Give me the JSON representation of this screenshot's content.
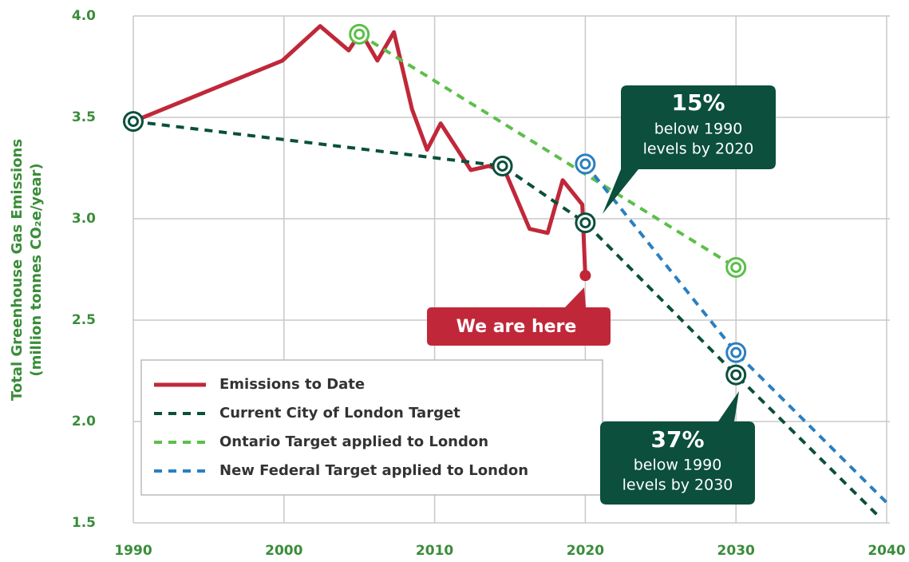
{
  "chart_data": {
    "type": "line",
    "y_label": [
      "Total Greenhouse Gas Emissions",
      "(million tonnes CO₂e/year)"
    ],
    "xlim": [
      1990,
      2040
    ],
    "xticks": [
      1990,
      2000,
      2010,
      2020,
      2030,
      2040
    ],
    "ylim": [
      1.5,
      4.0
    ],
    "yticks": [
      1.5,
      {
        "value": 2.0,
        "label": "2.0"
      },
      2.5,
      {
        "value": 3.0,
        "label": "3.0"
      },
      3.5,
      {
        "value": 4.0,
        "label": "4.0"
      }
    ],
    "grid": true,
    "legend": "lower left",
    "series": [
      {
        "name": "Emissions to Date",
        "color": "#c0283a",
        "dashed": false,
        "marker_style": "dot",
        "x": [
          1990,
          1999.9,
          2002.4,
          2004.3,
          2005.1,
          2006.2,
          2007.3,
          2008.5,
          2009.5,
          2010.4,
          2012.4,
          2013.6,
          2014.7,
          2016.3,
          2017.5,
          2018.5,
          2019.8,
          2020
        ],
        "values": [
          3.48,
          3.78,
          3.95,
          3.83,
          3.92,
          3.78,
          3.92,
          3.54,
          3.34,
          3.47,
          3.24,
          3.26,
          3.23,
          2.95,
          2.93,
          3.19,
          3.07,
          2.72
        ],
        "markers": [
          false,
          false,
          false,
          false,
          false,
          false,
          false,
          false,
          false,
          false,
          false,
          false,
          false,
          false,
          false,
          false,
          false,
          true
        ]
      },
      {
        "name": "Current City of London Target",
        "color": "#0b4f3c",
        "dashed": true,
        "marker_style": "ring",
        "x": [
          1990,
          2014.5,
          2020,
          2030,
          2039.5
        ],
        "values": [
          3.48,
          3.26,
          2.98,
          2.23,
          1.53
        ],
        "markers": [
          true,
          true,
          true,
          true,
          false
        ]
      },
      {
        "name": "Ontario Target applied to London",
        "color": "#5cbf4a",
        "dashed": true,
        "marker_style": "ring",
        "x": [
          2005,
          2030
        ],
        "values": [
          3.91,
          2.76
        ],
        "markers": [
          true,
          true
        ]
      },
      {
        "name": "New Federal Target applied to London",
        "color": "#2b7fc0",
        "dashed": true,
        "marker_style": "ring",
        "x": [
          2020,
          2030,
          2040
        ],
        "values": [
          3.27,
          2.34,
          1.6
        ],
        "markers": [
          true,
          true,
          false
        ]
      }
    ],
    "annotations": [
      {
        "big": "15%",
        "lines": [
          "below 1990",
          "levels by 2020"
        ]
      },
      {
        "big": "37%",
        "lines": [
          "below 1990",
          "levels by 2030"
        ]
      },
      {
        "big": "We are here"
      }
    ]
  }
}
